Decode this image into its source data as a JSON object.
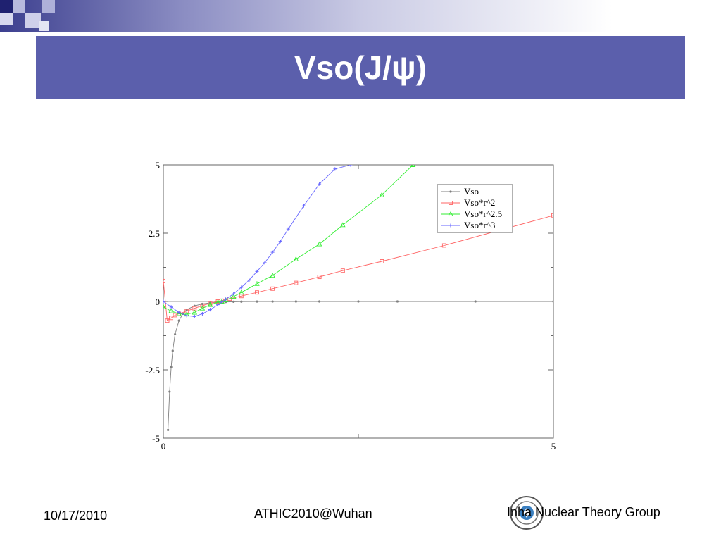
{
  "slide": {
    "title": "Vso(J/ψ)",
    "footer_date": "10/17/2010",
    "footer_event": "ATHIC2010@Wuhan",
    "footer_group": "Inha Nuclear Theory Group",
    "title_bar_color": "#5b5fac",
    "icons": [
      "university-seal-icon"
    ]
  },
  "chart_data": {
    "type": "line",
    "title": "",
    "xlabel": "",
    "ylabel": "",
    "xlim": [
      0,
      5
    ],
    "ylim": [
      -5,
      5
    ],
    "x_ticks": [
      0,
      5
    ],
    "y_ticks": [
      -5,
      -2.5,
      0,
      2.5,
      5
    ],
    "x_tick_labels": [
      "0",
      "5"
    ],
    "y_tick_labels": [
      "-5",
      "-2.5",
      "0",
      "2.5",
      "5"
    ],
    "grid": false,
    "legend_position": "top-right",
    "series": [
      {
        "name": "Vso",
        "color": "#808080",
        "marker": "dot",
        "x": [
          0.06,
          0.08,
          0.1,
          0.12,
          0.15,
          0.2,
          0.25,
          0.3,
          0.4,
          0.5,
          0.6,
          0.7,
          0.8,
          0.9,
          1.0,
          1.2,
          1.4,
          1.7,
          2.0,
          2.5,
          3.0,
          4.0,
          5.0
        ],
        "y": [
          -4.7,
          -3.3,
          -2.4,
          -1.8,
          -1.2,
          -0.7,
          -0.45,
          -0.3,
          -0.16,
          -0.09,
          -0.05,
          -0.03,
          -0.018,
          -0.01,
          -0.006,
          -0.002,
          -0.001,
          0,
          0,
          0,
          0,
          0,
          0
        ]
      },
      {
        "name": "Vso*r^2",
        "color": "#ff6666",
        "marker": "square",
        "x": [
          0.0,
          0.05,
          0.1,
          0.15,
          0.2,
          0.3,
          0.4,
          0.5,
          0.6,
          0.7,
          0.75,
          0.85,
          1.0,
          1.2,
          1.4,
          1.7,
          2.0,
          2.3,
          2.8,
          3.6,
          5.0
        ],
        "y": [
          0.75,
          -0.7,
          -0.6,
          -0.5,
          -0.45,
          -0.35,
          -0.25,
          -0.15,
          -0.07,
          0.0,
          0.03,
          0.1,
          0.2,
          0.33,
          0.47,
          0.68,
          0.9,
          1.13,
          1.47,
          2.05,
          3.15
        ]
      },
      {
        "name": "Vso*r^2.5",
        "color": "#33ee33",
        "marker": "triangle",
        "x": [
          0.0,
          0.1,
          0.2,
          0.3,
          0.4,
          0.5,
          0.6,
          0.7,
          0.75,
          0.8,
          0.9,
          1.0,
          1.2,
          1.4,
          1.7,
          2.0,
          2.3,
          2.8,
          3.2
        ],
        "y": [
          -0.2,
          -0.35,
          -0.45,
          -0.47,
          -0.4,
          -0.25,
          -0.12,
          -0.02,
          0.0,
          0.05,
          0.18,
          0.33,
          0.65,
          0.95,
          1.55,
          2.1,
          2.8,
          3.9,
          5.0
        ]
      },
      {
        "name": "Vso*r^3",
        "color": "#6666ff",
        "marker": "plus",
        "x": [
          0.0,
          0.1,
          0.2,
          0.3,
          0.4,
          0.5,
          0.6,
          0.7,
          0.75,
          0.8,
          0.9,
          1.0,
          1.1,
          1.2,
          1.3,
          1.4,
          1.5,
          1.6,
          1.8,
          2.0,
          2.2,
          2.4
        ],
        "y": [
          0.0,
          -0.2,
          -0.4,
          -0.52,
          -0.55,
          -0.45,
          -0.3,
          -0.12,
          -0.02,
          0.08,
          0.28,
          0.52,
          0.78,
          1.1,
          1.42,
          1.8,
          2.2,
          2.65,
          3.5,
          4.3,
          4.85,
          5.0
        ]
      }
    ]
  }
}
